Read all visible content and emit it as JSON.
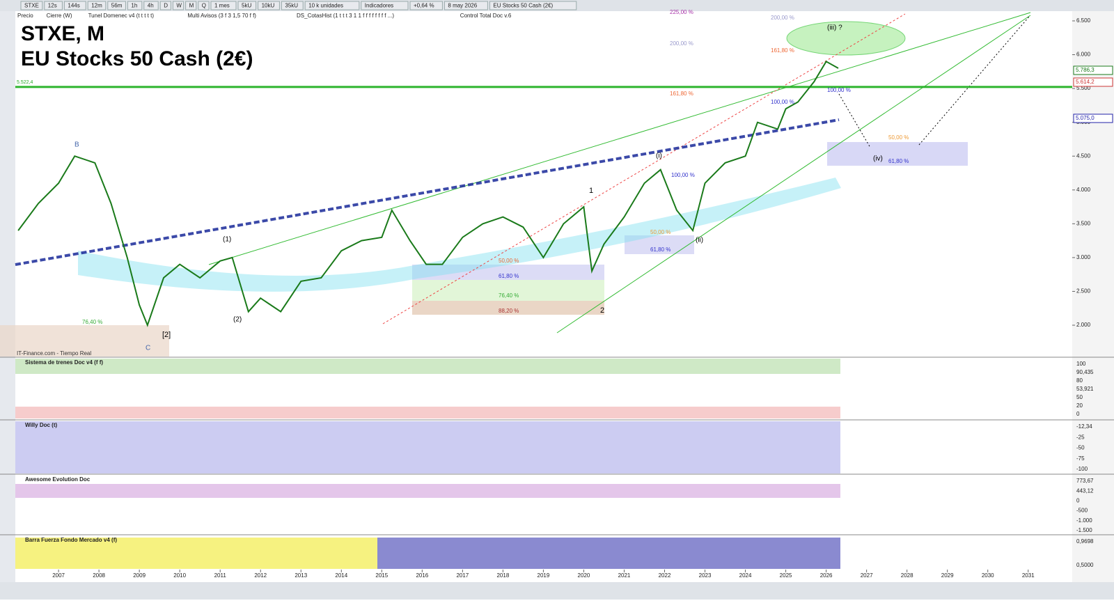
{
  "toolbar": [
    "STXE",
    "12s",
    "144s",
    "12m",
    "56m",
    "1h",
    "4h",
    "D",
    "W",
    "M",
    "Q",
    "1 mes",
    "5kU",
    "10kU",
    "35kU",
    "10 k unidades",
    "Indicadores",
    "+0,64 %",
    "8 may 2026",
    "EU Stocks 50 Cash (2€)"
  ],
  "legend": [
    "Precio",
    "Cierre (W)",
    "Tunel Domenec v4 (t t t t t)",
    "Multi Avisos (3 f 3 1,5 70 f f)",
    "DS_CotasHist (1 t t t 3 1 1 f f f f f f f f ...)",
    "Control Total Doc v.6"
  ],
  "annotations": [
    "STXE, M",
    "EU Stocks 50 Cash (2€)",
    "B",
    "C",
    "[2]",
    "(1)",
    "(2)",
    "1",
    "2",
    "(i)",
    "(ii)",
    "(iii) ?",
    "(iv)",
    "225,00 %",
    "200,00 %",
    "200,00 %",
    "161,80 %",
    "161,80 %",
    "100,00 %",
    "100,00 %",
    "100,00 %",
    "50,00 %",
    "61,80 %",
    "50,00 %",
    "61,80 %",
    "76,40 %",
    "88,20 %",
    "50,00 %",
    "61,80 %",
    "76,40 %",
    "IT-Finance.com - Tiempo Real"
  ],
  "price_tags": [
    "5.786,3",
    "5.614,2",
    "5.075,0"
  ],
  "panels": [
    {
      "name": "Sistema de trenes Doc v4 (f f)",
      "labels": [
        "100",
        "90,435",
        "80",
        "53,921",
        "50",
        "20",
        "0"
      ]
    },
    {
      "name": "Willy Doc (t)",
      "labels": [
        "-12,34",
        "-25",
        "-50",
        "-75",
        "-100"
      ]
    },
    {
      "name": "Awesome Evolution Doc",
      "labels": [
        "773,67",
        "443,12",
        "0",
        "-500",
        "-1.000",
        "-1.500"
      ]
    },
    {
      "name": "Barra Fuerza Fondo Mercado v4 (f)",
      "labels": [
        "0,9698",
        "0,5000"
      ]
    }
  ],
  "chart_data": {
    "type": "line",
    "x": [
      2006.0,
      2006.5,
      2007.0,
      2007.4,
      2007.9,
      2008.3,
      2008.7,
      2009.0,
      2009.2,
      2009.6,
      2010.0,
      2010.5,
      2011.0,
      2011.3,
      2011.7,
      2012.0,
      2012.5,
      2013.0,
      2013.5,
      2014.0,
      2014.5,
      2015.0,
      2015.25,
      2015.7,
      2016.1,
      2016.5,
      2017.0,
      2017.5,
      2018.0,
      2018.5,
      2019.0,
      2019.5,
      2020.0,
      2020.2,
      2020.5,
      2021.0,
      2021.5,
      2021.9,
      2022.3,
      2022.7,
      2023.0,
      2023.5,
      2024.0,
      2024.3,
      2024.8,
      2025.0,
      2025.3,
      2025.7,
      2026.0,
      2026.3
    ],
    "series": [
      {
        "name": "Precio",
        "color": "#1a7a1a",
        "values": [
          3400,
          3800,
          4100,
          4500,
          4400,
          3800,
          3000,
          2300,
          2000,
          2700,
          2900,
          2700,
          2950,
          3000,
          2200,
          2400,
          2200,
          2650,
          2700,
          3100,
          3250,
          3300,
          3700,
          3250,
          2900,
          2900,
          3300,
          3500,
          3600,
          3450,
          3000,
          3500,
          3750,
          2800,
          3200,
          3600,
          4100,
          4300,
          3700,
          3400,
          4100,
          4400,
          4500,
          5000,
          4900,
          5200,
          5300,
          5600,
          5900,
          5800
        ]
      }
    ],
    "hline": 5522.4,
    "hline_label": "5.522,4",
    "xlim": [
      2005.93,
      2032.09
    ],
    "ylim": [
      1537,
      6644
    ],
    "xticks": [
      2007,
      2008,
      2009,
      2010,
      2011,
      2012,
      2013,
      2014,
      2015,
      2016,
      2017,
      2018,
      2019,
      2020,
      2021,
      2022,
      2023,
      2024,
      2025,
      2026,
      2027,
      2028,
      2029,
      2030,
      2031
    ],
    "yticks": [
      {
        "value": 2000,
        "label": "2.000"
      },
      {
        "value": 2500,
        "label": "2.500"
      },
      {
        "value": 3000,
        "label": "3.000"
      },
      {
        "value": 3500,
        "label": "3.500"
      },
      {
        "value": 4000,
        "label": "4.000"
      },
      {
        "value": 4500,
        "label": "4.500"
      },
      {
        "value": 5000,
        "label": "5.000"
      },
      {
        "value": 5500,
        "label": "5.500"
      },
      {
        "value": 6000,
        "label": "6.000"
      },
      {
        "value": 6500,
        "label": "6.500"
      }
    ]
  }
}
